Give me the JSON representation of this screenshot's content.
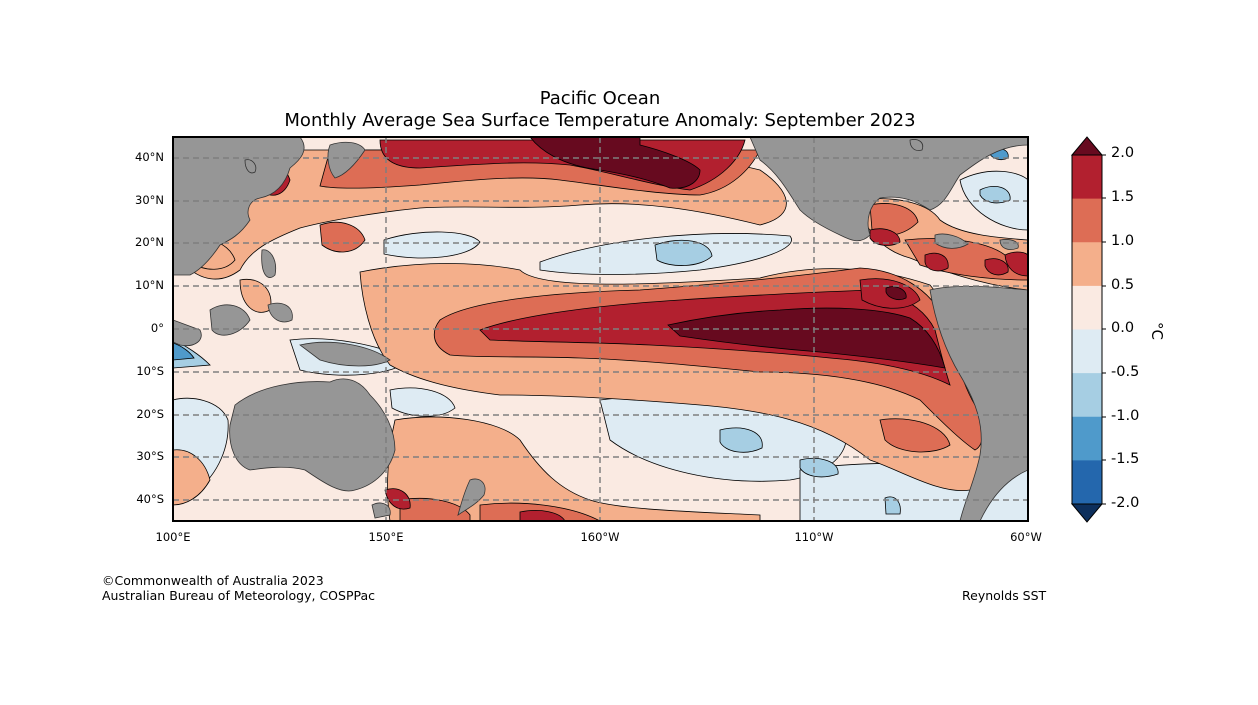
{
  "title": "Pacific Ocean",
  "subtitle": "Monthly Average Sea Surface Temperature Anomaly: September 2023",
  "credit": {
    "line1": "©Commonwealth of Australia 2023",
    "line2": "Australian Bureau of Meteorology, COSPPac"
  },
  "source": "Reynolds SST",
  "lat_labels": [
    "40°N",
    "30°N",
    "20°N",
    "10°N",
    "0°",
    "10°S",
    "20°S",
    "30°S",
    "40°S"
  ],
  "lon_labels": [
    "100°E",
    "150°E",
    "160°W",
    "110°W",
    "60°W"
  ],
  "colorbar": {
    "unit": "°C",
    "ticks": [
      "2.0",
      "1.5",
      "1.0",
      "0.5",
      "0.0",
      "-0.5",
      "-1.0",
      "-1.5",
      "-2.0"
    ],
    "colors_top_to_bottom": [
      "#b2202f",
      "#dd6d55",
      "#f4af8b",
      "#faeae2",
      "#deebf3",
      "#a6cee3",
      "#4f9acb",
      "#2467ad"
    ],
    "over_color": "#670a1f",
    "under_color": "#0d2f5c"
  },
  "palette": {
    "land": "#969696",
    "frame": "#000000",
    "grid": "#7f7f7f"
  }
}
